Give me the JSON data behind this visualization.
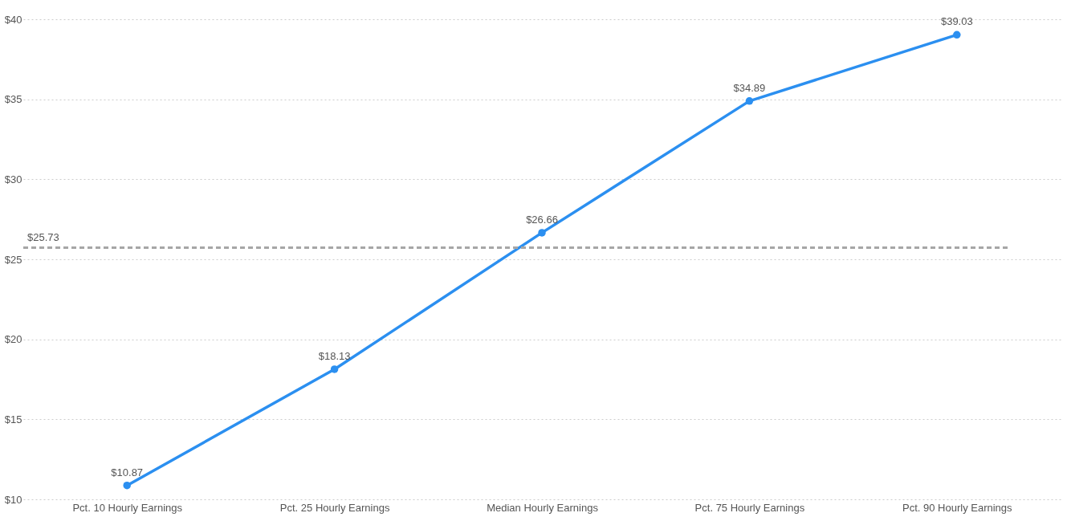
{
  "chart_data": {
    "type": "line",
    "categories": [
      "Pct. 10 Hourly Earnings",
      "Pct. 25 Hourly Earnings",
      "Median Hourly Earnings",
      "Pct. 75 Hourly Earnings",
      "Pct. 90 Hourly Earnings"
    ],
    "series": [
      {
        "color": "#2b8ff0",
        "values": [
          10.87,
          18.13,
          26.66,
          34.89,
          39.03
        ],
        "value_labels": [
          "$10.87",
          "$18.13",
          "$26.66",
          "$34.89",
          "$39.03"
        ]
      }
    ],
    "ylim": [
      10,
      40
    ],
    "yticks": [
      {
        "value": 10,
        "label": "$10"
      },
      {
        "value": 15,
        "label": "$15"
      },
      {
        "value": 20,
        "label": "$20"
      },
      {
        "value": 25,
        "label": "$25"
      },
      {
        "value": 30,
        "label": "$30"
      },
      {
        "value": 35,
        "label": "$35"
      },
      {
        "value": 40,
        "label": "$40"
      }
    ],
    "ref_lines": [
      {
        "axis": "y",
        "value": 25.73,
        "label": "$25.73",
        "color": "#a6a6a6",
        "line_style": "dashed"
      }
    ],
    "grid": "y",
    "marker": "circle",
    "line_style": "solid"
  }
}
